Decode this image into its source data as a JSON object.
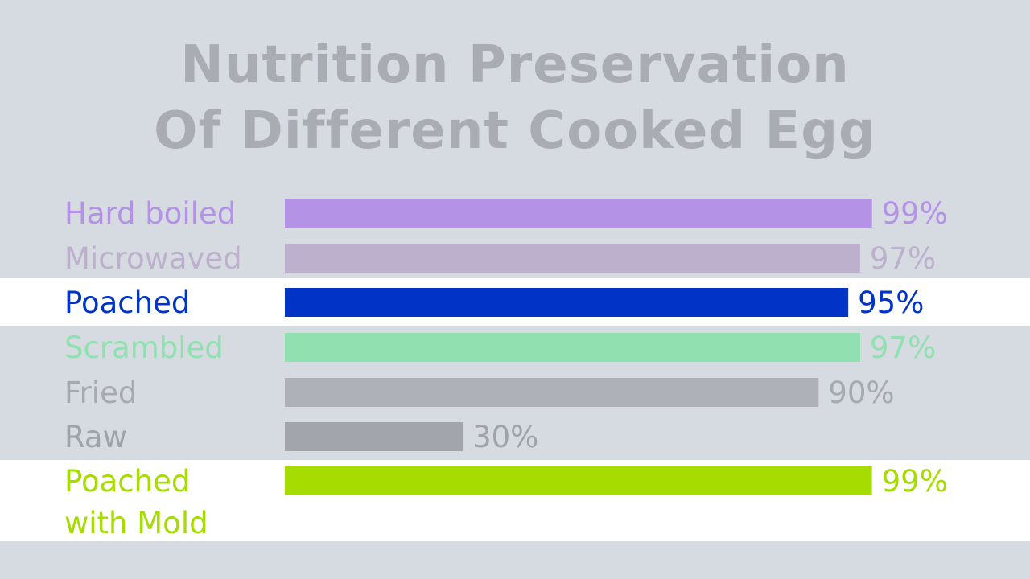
{
  "title": {
    "line1": "Nutrition Preservation",
    "line2": "Of Different Cooked Egg"
  },
  "colors": {
    "background": "#d6dbe2",
    "highlight_band": "#ffffff",
    "title": "#a9adb3"
  },
  "chart_data": {
    "type": "bar",
    "orientation": "horizontal",
    "title": "Nutrition Preservation Of Different Cooked Egg",
    "xlabel": "",
    "ylabel": "",
    "xlim": [
      0,
      100
    ],
    "grid": false,
    "legend": "none",
    "categories": [
      [
        "Hard boiled"
      ],
      [
        "Microwaved"
      ],
      [
        "Poached"
      ],
      [
        "Scrambled"
      ],
      [
        "Fried"
      ],
      [
        "Raw"
      ],
      [
        "Poached",
        "with Mold"
      ]
    ],
    "values": [
      99,
      97,
      95,
      97,
      90,
      30,
      99
    ],
    "value_labels": [
      "99%",
      "97%",
      "95%",
      "97%",
      "90%",
      "30%",
      "99%"
    ],
    "bar_colors": [
      "#b492e6",
      "#bdb0cc",
      "#0033c6",
      "#90e0b0",
      "#aeb2b8",
      "#a2a6ac",
      "#a6dc00"
    ],
    "label_colors": [
      "#b492e6",
      "#bdb0cc",
      "#0033c6",
      "#90e0b0",
      "#a6a9ae",
      "#9fa3a9",
      "#a6dc00"
    ],
    "highlighted": [
      false,
      false,
      true,
      false,
      false,
      false,
      true
    ]
  }
}
